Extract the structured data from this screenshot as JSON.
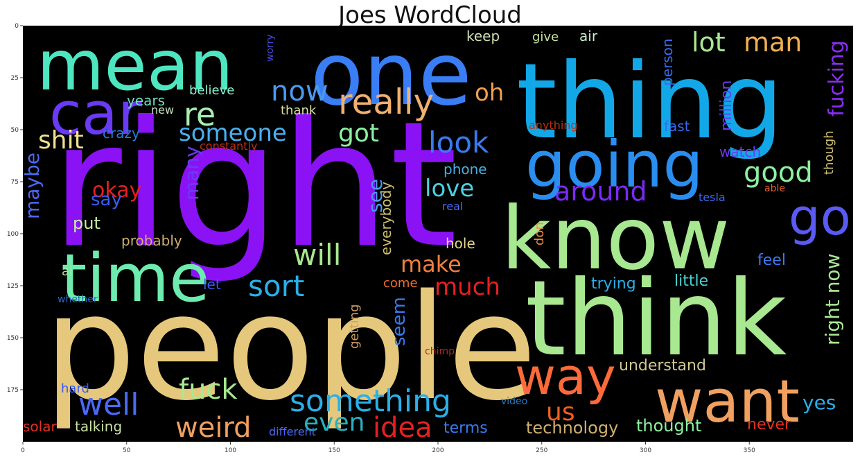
{
  "title": "Joes WordCloud",
  "axes": {
    "x_ticks": [
      "0",
      "50",
      "100",
      "150",
      "200",
      "250",
      "300",
      "350"
    ],
    "y_ticks": [
      "0",
      "25",
      "50",
      "75",
      "100",
      "125",
      "150",
      "175"
    ]
  },
  "words": [
    {
      "text": "right",
      "color": "#8a12f5",
      "orient": "h"
    },
    {
      "text": "people",
      "color": "#e6c87c",
      "orient": "h"
    },
    {
      "text": "think",
      "color": "#a8e890",
      "orient": "h"
    },
    {
      "text": "know",
      "color": "#a8e890",
      "orient": "h"
    },
    {
      "text": "thing",
      "color": "#12a8e8",
      "orient": "h"
    },
    {
      "text": "one",
      "color": "#3a7ef5",
      "orient": "h"
    },
    {
      "text": "mean",
      "color": "#4ee6c0",
      "orient": "h"
    },
    {
      "text": "car",
      "color": "#6a3af5",
      "orient": "h"
    },
    {
      "text": "time",
      "color": "#6eecb0",
      "orient": "h"
    },
    {
      "text": "going",
      "color": "#2a8ef0",
      "orient": "h"
    },
    {
      "text": "want",
      "color": "#f0a060",
      "orient": "h"
    },
    {
      "text": "way",
      "color": "#ff6a3a",
      "orient": "h"
    },
    {
      "text": "go",
      "color": "#5a5af5",
      "orient": "h"
    },
    {
      "text": "re",
      "color": "#a8ecb0",
      "orient": "h"
    },
    {
      "text": "really",
      "color": "#f0b070",
      "orient": "h"
    },
    {
      "text": "oh",
      "color": "#f0a050",
      "orient": "h"
    },
    {
      "text": "now",
      "color": "#4a9af0",
      "orient": "h"
    },
    {
      "text": "lot",
      "color": "#a8e890",
      "orient": "h"
    },
    {
      "text": "man",
      "color": "#f0b050",
      "orient": "h"
    },
    {
      "text": "fucking",
      "color": "#8a2ef5",
      "orient": "v"
    },
    {
      "text": "shit",
      "color": "#f0e090",
      "orient": "h"
    },
    {
      "text": "someone",
      "color": "#4ab0f0",
      "orient": "h"
    },
    {
      "text": "got",
      "color": "#8ef0a0",
      "orient": "h"
    },
    {
      "text": "look",
      "color": "#3a7af0",
      "orient": "h"
    },
    {
      "text": "good",
      "color": "#8ef0a0",
      "orient": "h"
    },
    {
      "text": "around",
      "color": "#7a2af5",
      "orient": "h"
    },
    {
      "text": "maybe",
      "color": "#4a6af5",
      "orient": "v"
    },
    {
      "text": "okay",
      "color": "#e62020",
      "orient": "h"
    },
    {
      "text": "say",
      "color": "#3a5af5",
      "orient": "h"
    },
    {
      "text": "many",
      "color": "#6a3af5",
      "orient": "v"
    },
    {
      "text": "put",
      "color": "#c8f0a0",
      "orient": "h"
    },
    {
      "text": "love",
      "color": "#4ad0e0",
      "orient": "h"
    },
    {
      "text": "see",
      "color": "#4a9af0",
      "orient": "v"
    },
    {
      "text": "will",
      "color": "#a8e890",
      "orient": "h"
    },
    {
      "text": "make",
      "color": "#f08040",
      "orient": "h"
    },
    {
      "text": "sort",
      "color": "#2ab0e8",
      "orient": "h"
    },
    {
      "text": "much",
      "color": "#e62020",
      "orient": "h"
    },
    {
      "text": "right now",
      "color": "#a8e890",
      "orient": "v"
    },
    {
      "text": "probably",
      "color": "#d0b070",
      "orient": "h"
    },
    {
      "text": "hole",
      "color": "#e8d890",
      "orient": "h"
    },
    {
      "text": "everybody",
      "color": "#d0c070",
      "orient": "v"
    },
    {
      "text": "ai",
      "color": "#a8e890",
      "orient": "h"
    },
    {
      "text": "let",
      "color": "#3a5af5",
      "orient": "h"
    },
    {
      "text": "come",
      "color": "#f07030",
      "orient": "h"
    },
    {
      "text": "seem",
      "color": "#3a7af0",
      "orient": "v"
    },
    {
      "text": "getting",
      "color": "#d0a060",
      "orient": "v"
    },
    {
      "text": "fuck",
      "color": "#a8e890",
      "orient": "h"
    },
    {
      "text": "well",
      "color": "#4a6af5",
      "orient": "h"
    },
    {
      "text": "something",
      "color": "#2ab0e8",
      "orient": "h"
    },
    {
      "text": "weird",
      "color": "#f0a060",
      "orient": "h"
    },
    {
      "text": "even",
      "color": "#2ab0c0",
      "orient": "h"
    },
    {
      "text": "idea",
      "color": "#e62020",
      "orient": "h"
    },
    {
      "text": "us",
      "color": "#f06020",
      "orient": "h"
    },
    {
      "text": "yes",
      "color": "#2ab0e8",
      "orient": "h"
    },
    {
      "text": "solar",
      "color": "#e63020",
      "orient": "h"
    },
    {
      "text": "talking",
      "color": "#c8e0a0",
      "orient": "h"
    },
    {
      "text": "different",
      "color": "#4a6af5",
      "orient": "h"
    },
    {
      "text": "terms",
      "color": "#3a7af0",
      "orient": "h"
    },
    {
      "text": "technology",
      "color": "#d0b070",
      "orient": "h"
    },
    {
      "text": "thought",
      "color": "#8ef0a0",
      "orient": "h"
    },
    {
      "text": "never",
      "color": "#e63020",
      "orient": "h"
    },
    {
      "text": "understand",
      "color": "#d0c890",
      "orient": "h"
    },
    {
      "text": "trying",
      "color": "#2ab0e8",
      "orient": "h"
    },
    {
      "text": "little",
      "color": "#4ad0d0",
      "orient": "h"
    },
    {
      "text": "feel",
      "color": "#3a7af0",
      "orient": "h"
    },
    {
      "text": "video",
      "color": "#2a7ac0",
      "orient": "h"
    },
    {
      "text": "chimp",
      "color": "#c02010",
      "orient": "h"
    },
    {
      "text": "hard",
      "color": "#3a5af5",
      "orient": "h"
    },
    {
      "text": "whether",
      "color": "#2a6ac0",
      "orient": "h"
    },
    {
      "text": "believe",
      "color": "#8ef0d0",
      "orient": "h"
    },
    {
      "text": "years",
      "color": "#6ee0c0",
      "orient": "h"
    },
    {
      "text": "new",
      "color": "#c8e0c0",
      "orient": "h"
    },
    {
      "text": "thank",
      "color": "#d8e0a0",
      "orient": "h"
    },
    {
      "text": "crazy",
      "color": "#2a7ae0",
      "orient": "h"
    },
    {
      "text": "constantly",
      "color": "#c03010",
      "orient": "h"
    },
    {
      "text": "worry",
      "color": "#4a4ae0",
      "orient": "v"
    },
    {
      "text": "keep",
      "color": "#d0e0b0",
      "orient": "h"
    },
    {
      "text": "give",
      "color": "#c8e0a0",
      "orient": "h"
    },
    {
      "text": "air",
      "color": "#c8f0d0",
      "orient": "h"
    },
    {
      "text": "person",
      "color": "#3a6af0",
      "orient": "v"
    },
    {
      "text": "million",
      "color": "#6a3af5",
      "orient": "v"
    },
    {
      "text": "anything",
      "color": "#c03010",
      "orient": "h"
    },
    {
      "text": "fast",
      "color": "#3a6af0",
      "orient": "h"
    },
    {
      "text": "watch",
      "color": "#6a3af5",
      "orient": "h"
    },
    {
      "text": "though",
      "color": "#d0c070",
      "orient": "v"
    },
    {
      "text": "tesla",
      "color": "#3a6af0",
      "orient": "h"
    },
    {
      "text": "able",
      "color": "#e06030",
      "orient": "h"
    },
    {
      "text": "phone",
      "color": "#4ab0e0",
      "orient": "h"
    },
    {
      "text": "real",
      "color": "#4a6af5",
      "orient": "h"
    },
    {
      "text": "don",
      "color": "#f09040",
      "orient": "v"
    }
  ]
}
